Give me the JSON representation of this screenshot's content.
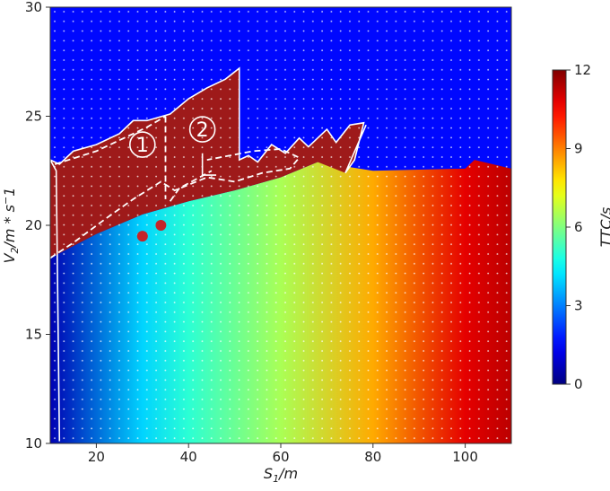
{
  "chart_data": {
    "type": "heatmap",
    "title": "",
    "xlabel": "S_1/m",
    "ylabel": "V_2/m*s^-1",
    "colorbar_label": "TTC/s",
    "xlim": [
      10,
      110
    ],
    "ylim": [
      10,
      30
    ],
    "clim": [
      0,
      12
    ],
    "x_ticks": [
      20,
      40,
      60,
      80,
      100
    ],
    "y_ticks": [
      10,
      15,
      20,
      25,
      30
    ],
    "colorbar_ticks": [
      0,
      3,
      6,
      9,
      12
    ],
    "colormap": "jet",
    "grid_markers": "white dots",
    "value_field": {
      "lower_region_ttc_by_s1": [
        {
          "s1": 10,
          "ttc": 0.6
        },
        {
          "s1": 30,
          "ttc": 4.0
        },
        {
          "s1": 40,
          "ttc": 5.0
        },
        {
          "s1": 60,
          "ttc": 6.5
        },
        {
          "s1": 80,
          "ttc": 8.5
        },
        {
          "s1": 100,
          "ttc": 10.8
        },
        {
          "s1": 110,
          "ttc": 11.3
        }
      ],
      "upper_region_ttc": 1.6,
      "collision_region_ttc": 0.3,
      "boundary_curve": [
        {
          "s1": 10,
          "v2": 18.5
        },
        {
          "s1": 20,
          "v2": 19.6
        },
        {
          "s1": 30,
          "v2": 20.5
        },
        {
          "s1": 40,
          "v2": 21.1
        },
        {
          "s1": 50,
          "v2": 21.6
        },
        {
          "s1": 60,
          "v2": 22.2
        },
        {
          "s1": 68,
          "v2": 22.9
        },
        {
          "s1": 80,
          "v2": 22.5
        },
        {
          "s1": 100,
          "v2": 22.6
        },
        {
          "s1": 102,
          "v2": 23.0
        },
        {
          "s1": 110,
          "v2": 22.6
        }
      ]
    },
    "annotations": [
      {
        "label": "1",
        "s1": 30,
        "v2": 23.7
      },
      {
        "label": "2",
        "s1": 43,
        "v2": 24.4
      }
    ]
  },
  "colors": {
    "collision": "#9e1a1a",
    "outline": "#ffffff"
  }
}
